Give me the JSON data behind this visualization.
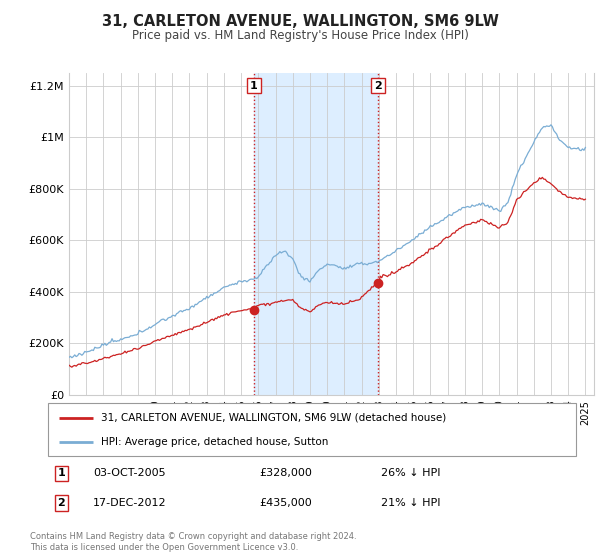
{
  "title": "31, CARLETON AVENUE, WALLINGTON, SM6 9LW",
  "subtitle": "Price paid vs. HM Land Registry's House Price Index (HPI)",
  "red_color": "#cc2222",
  "blue_color": "#7aadd4",
  "shading_color": "#ddeeff",
  "background_color": "#ffffff",
  "grid_color": "#cccccc",
  "ylim": [
    0,
    1250000
  ],
  "xlim_start": 1995.0,
  "xlim_end": 2025.5,
  "yticks": [
    0,
    200000,
    400000,
    600000,
    800000,
    1000000,
    1200000
  ],
  "ytick_labels": [
    "£0",
    "£200K",
    "£400K",
    "£600K",
    "£800K",
    "£1M",
    "£1.2M"
  ],
  "xticks": [
    1995,
    1996,
    1997,
    1998,
    1999,
    2000,
    2001,
    2002,
    2003,
    2004,
    2005,
    2006,
    2007,
    2008,
    2009,
    2010,
    2011,
    2012,
    2013,
    2014,
    2015,
    2016,
    2017,
    2018,
    2019,
    2020,
    2021,
    2022,
    2023,
    2024,
    2025
  ],
  "sale1_x": 2005.75,
  "sale1_y": 328000,
  "sale1_label": "1",
  "sale1_date": "03-OCT-2005",
  "sale1_price": "£328,000",
  "sale1_hpi": "26% ↓ HPI",
  "sale2_x": 2012.96,
  "sale2_y": 435000,
  "sale2_label": "2",
  "sale2_date": "17-DEC-2012",
  "sale2_price": "£435,000",
  "sale2_hpi": "21% ↓ HPI",
  "legend_label_red": "31, CARLETON AVENUE, WALLINGTON, SM6 9LW (detached house)",
  "legend_label_blue": "HPI: Average price, detached house, Sutton",
  "footer_line1": "Contains HM Land Registry data © Crown copyright and database right 2024.",
  "footer_line2": "This data is licensed under the Open Government Licence v3.0."
}
